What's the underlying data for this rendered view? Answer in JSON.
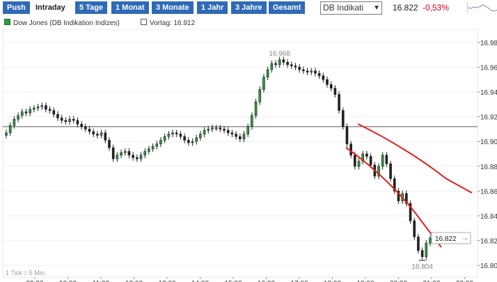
{
  "toolbar": {
    "tabs": [
      {
        "label": "Push",
        "active": false
      },
      {
        "label": "Intraday",
        "active": true
      },
      {
        "label": "5 Tage",
        "active": false
      },
      {
        "label": "1 Monat",
        "active": false
      },
      {
        "label": "3 Monate",
        "active": false
      },
      {
        "label": "1 Jahr",
        "active": false
      },
      {
        "label": "3 Jahre",
        "active": false
      },
      {
        "label": "Gesamt",
        "active": false
      }
    ],
    "index_select": "DB Indikati",
    "last_price": "16.822",
    "change_pct": "-0,53%"
  },
  "legend": {
    "series_label": "Dow Jones (DB Indikation Indizes)",
    "series_color": "#2e9e3e",
    "prev_close_label": "Vortag: 16.912"
  },
  "chart_data": {
    "type": "candlestick",
    "series_name": "Dow Jones (DB Indikation Indizes)",
    "y_ticks": [
      "16.98",
      "16.96",
      "16.94",
      "16.92",
      "16.90",
      "16.88",
      "16.86",
      "16.84",
      "16.82",
      "16.80"
    ],
    "ylim": [
      16.795,
      16.985
    ],
    "x_ticks": [
      "09:00",
      "10:00",
      "11:00",
      "12:00",
      "13:00",
      "14:00",
      "15:00",
      "16:00",
      "17:00",
      "18:00",
      "19:00",
      "20:00",
      "21:00",
      "22:00"
    ],
    "prev_close": 16.912,
    "high_label": "16.968",
    "low_label": "16.804",
    "last_label": "16.822",
    "footnote": "1 Tick = 5 Min.",
    "closes": [
      16.907,
      16.913,
      16.918,
      16.921,
      16.924,
      16.923,
      16.926,
      16.927,
      16.928,
      16.929,
      16.926,
      16.925,
      16.922,
      16.919,
      16.917,
      16.916,
      16.918,
      16.917,
      16.914,
      16.912,
      16.91,
      16.908,
      16.906,
      16.905,
      16.907,
      16.901,
      16.895,
      16.886,
      16.889,
      16.891,
      16.892,
      16.889,
      16.887,
      16.886,
      16.889,
      16.892,
      16.894,
      16.896,
      16.898,
      16.901,
      16.904,
      16.906,
      16.907,
      16.906,
      16.904,
      16.901,
      16.899,
      16.9,
      16.903,
      16.906,
      16.909,
      16.91,
      16.911,
      16.911,
      16.91,
      16.909,
      16.907,
      16.906,
      16.904,
      16.902,
      16.906,
      16.912,
      16.921,
      16.932,
      16.942,
      16.952,
      16.958,
      16.963,
      16.962,
      16.966,
      16.964,
      16.962,
      16.961,
      16.96,
      16.958,
      16.957,
      16.956,
      16.957,
      16.955,
      16.953,
      16.95,
      16.946,
      16.943,
      16.938,
      16.925,
      16.912,
      16.898,
      16.889,
      16.88,
      16.884,
      16.89,
      16.888,
      16.881,
      16.872,
      16.88,
      16.889,
      16.882,
      16.87,
      16.86,
      16.852,
      16.858,
      16.85,
      16.836,
      16.823,
      16.812,
      16.807,
      16.818,
      16.822
    ]
  }
}
